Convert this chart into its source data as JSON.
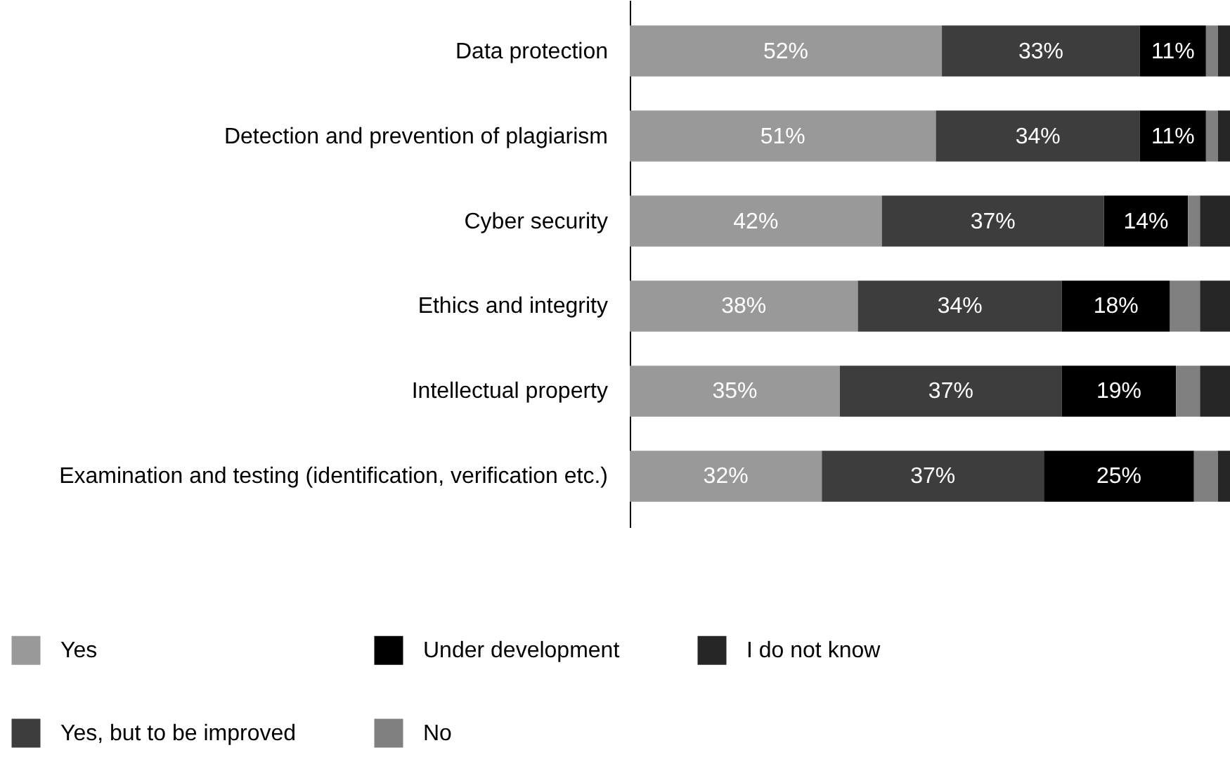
{
  "chart_data": {
    "type": "bar",
    "orientation": "horizontal",
    "stacked": true,
    "legend": "bottom left",
    "categories": [
      "Data protection",
      "Detection and prevention of plagiarism",
      "Cyber security",
      "Ethics and integrity",
      "Intellectual property",
      "Examination and testing (identification, verification etc.)"
    ],
    "series": [
      {
        "name": "Yes",
        "color": "#999999",
        "values": [
          52,
          51,
          42,
          38,
          35,
          32
        ],
        "value_labels": [
          "52%",
          "51%",
          "42%",
          "38%",
          "35%",
          "32%"
        ]
      },
      {
        "name": "Yes, but to be improved",
        "color": "#3d3d3d",
        "values": [
          33,
          34,
          37,
          34,
          37,
          37
        ],
        "value_labels": [
          "33%",
          "34%",
          "37%",
          "34%",
          "37%",
          "37%"
        ]
      },
      {
        "name": "Under development",
        "color": "#000000",
        "values": [
          11,
          11,
          14,
          18,
          19,
          25
        ],
        "value_labels": [
          "11%",
          "11%",
          "14%",
          "18%",
          "19%",
          "25%"
        ]
      },
      {
        "name": "No",
        "color": "#808080",
        "values": [
          2,
          2,
          2,
          5,
          4,
          4
        ]
      },
      {
        "name": "I do not know",
        "color": "#262626",
        "values": [
          2,
          2,
          5,
          5,
          5,
          2
        ]
      }
    ]
  }
}
